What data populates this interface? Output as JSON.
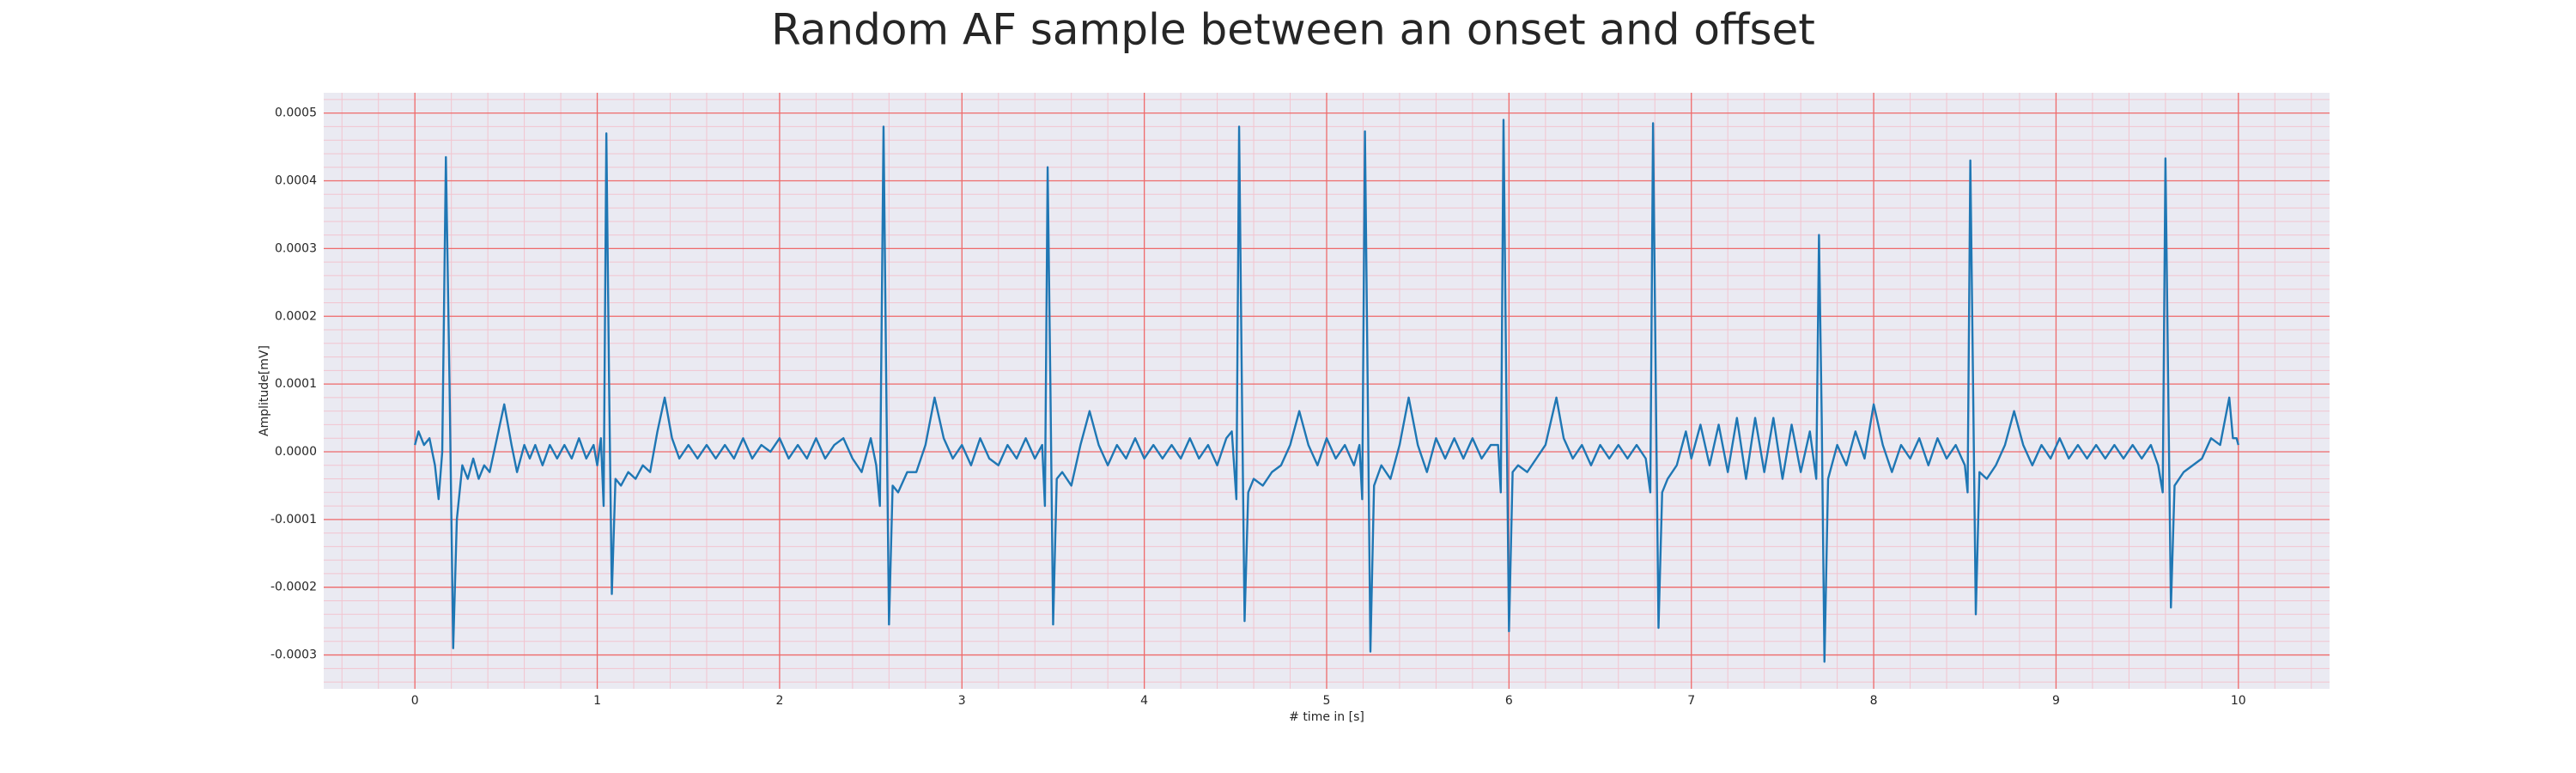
{
  "chart_data": {
    "type": "line",
    "title": "Random AF sample between an onset and offset",
    "xlabel": "# time in [s]",
    "ylabel": "Amplitude[mV]",
    "color": "#1f77b4",
    "grid": true,
    "minor_grid": true,
    "xlim": [
      -0.5,
      10.5
    ],
    "xticks": [
      0,
      1,
      2,
      3,
      4,
      5,
      6,
      7,
      8,
      9,
      10
    ],
    "ylim": [
      -0.00035,
      0.00053
    ],
    "yticks": [
      -0.0003,
      -0.0002,
      -0.0001,
      {
        "value": 0,
        "label": "0.0000"
      },
      0.0001,
      0.0002,
      0.0003,
      0.0004,
      0.0005
    ],
    "x": [
      0,
      0.02,
      0.05,
      0.08,
      0.11,
      0.13,
      0.15,
      0.17,
      0.19,
      0.21,
      0.23,
      0.26,
      0.29,
      0.32,
      0.35,
      0.38,
      0.41,
      0.45,
      0.49,
      0.53,
      0.56,
      0.6,
      0.63,
      0.66,
      0.7,
      0.74,
      0.78,
      0.82,
      0.86,
      0.9,
      0.94,
      0.98,
      1.0,
      1.02,
      1.035,
      1.05,
      1.065,
      1.08,
      1.1,
      1.13,
      1.17,
      1.21,
      1.25,
      1.29,
      1.33,
      1.37,
      1.41,
      1.45,
      1.5,
      1.55,
      1.6,
      1.65,
      1.7,
      1.75,
      1.8,
      1.85,
      1.9,
      1.95,
      2.0,
      2.05,
      2.1,
      2.15,
      2.2,
      2.25,
      2.3,
      2.35,
      2.4,
      2.45,
      2.5,
      2.53,
      2.55,
      2.57,
      2.585,
      2.6,
      2.62,
      2.65,
      2.7,
      2.75,
      2.8,
      2.85,
      2.9,
      2.95,
      3.0,
      3.05,
      3.1,
      3.15,
      3.2,
      3.25,
      3.3,
      3.35,
      3.4,
      3.44,
      3.455,
      3.47,
      3.485,
      3.5,
      3.52,
      3.55,
      3.6,
      3.65,
      3.7,
      3.75,
      3.8,
      3.85,
      3.9,
      3.95,
      4.0,
      4.05,
      4.1,
      4.15,
      4.2,
      4.25,
      4.3,
      4.35,
      4.4,
      4.45,
      4.48,
      4.505,
      4.52,
      4.535,
      4.55,
      4.57,
      4.6,
      4.65,
      4.7,
      4.75,
      4.8,
      4.85,
      4.9,
      4.95,
      5.0,
      5.05,
      5.1,
      5.15,
      5.18,
      5.195,
      5.21,
      5.225,
      5.24,
      5.26,
      5.3,
      5.35,
      5.4,
      5.45,
      5.5,
      5.55,
      5.6,
      5.65,
      5.7,
      5.75,
      5.8,
      5.85,
      5.9,
      5.94,
      5.955,
      5.97,
      5.985,
      6.0,
      6.02,
      6.05,
      6.1,
      6.15,
      6.2,
      6.26,
      6.3,
      6.35,
      6.4,
      6.45,
      6.5,
      6.55,
      6.6,
      6.65,
      6.7,
      6.75,
      6.775,
      6.79,
      6.805,
      6.82,
      6.84,
      6.87,
      6.92,
      6.97,
      7.0,
      7.05,
      7.1,
      7.15,
      7.2,
      7.25,
      7.3,
      7.35,
      7.4,
      7.45,
      7.5,
      7.55,
      7.6,
      7.65,
      7.685,
      7.7,
      7.715,
      7.73,
      7.75,
      7.8,
      7.85,
      7.9,
      7.95,
      8.0,
      8.05,
      8.1,
      8.15,
      8.2,
      8.25,
      8.3,
      8.35,
      8.4,
      8.45,
      8.5,
      8.515,
      8.53,
      8.545,
      8.56,
      8.58,
      8.62,
      8.67,
      8.72,
      8.77,
      8.82,
      8.87,
      8.92,
      8.97,
      9.02,
      9.07,
      9.12,
      9.17,
      9.22,
      9.27,
      9.32,
      9.37,
      9.42,
      9.47,
      9.52,
      9.56,
      9.585,
      9.6,
      9.615,
      9.63,
      9.65,
      9.7,
      9.75,
      9.8,
      9.85,
      9.9,
      9.95,
      9.97,
      9.99,
      10.0
    ],
    "values": [
      1e-05,
      3e-05,
      1e-05,
      2e-05,
      -2e-05,
      -7e-05,
      0,
      0.000435,
      0.0001,
      -0.00029,
      -0.0001,
      -2e-05,
      -4e-05,
      -1e-05,
      -4e-05,
      -2e-05,
      -3e-05,
      2e-05,
      7e-05,
      1e-05,
      -3e-05,
      1e-05,
      -1e-05,
      1e-05,
      -2e-05,
      1e-05,
      -1e-05,
      1e-05,
      -1e-05,
      2e-05,
      -1e-05,
      1e-05,
      -2e-05,
      2e-05,
      -8e-05,
      0.00047,
      0.0001,
      -0.00021,
      -4e-05,
      -5e-05,
      -3e-05,
      -4e-05,
      -2e-05,
      -3e-05,
      3e-05,
      8e-05,
      2e-05,
      -1e-05,
      1e-05,
      -1e-05,
      1e-05,
      -1e-05,
      1e-05,
      -1e-05,
      2e-05,
      -1e-05,
      1e-05,
      0,
      2e-05,
      -1e-05,
      1e-05,
      -1e-05,
      2e-05,
      -1e-05,
      1e-05,
      2e-05,
      -1e-05,
      -3e-05,
      2e-05,
      -2e-05,
      -8e-05,
      0.00048,
      0.0001,
      -0.000255,
      -5e-05,
      -6e-05,
      -3e-05,
      -3e-05,
      1e-05,
      8e-05,
      2e-05,
      -1e-05,
      1e-05,
      -2e-05,
      2e-05,
      -1e-05,
      -2e-05,
      1e-05,
      -1e-05,
      2e-05,
      -1e-05,
      1e-05,
      -8e-05,
      0.00042,
      0.0001,
      -0.000255,
      -4e-05,
      -3e-05,
      -5e-05,
      1e-05,
      6e-05,
      1e-05,
      -2e-05,
      1e-05,
      -1e-05,
      2e-05,
      -1e-05,
      1e-05,
      -1e-05,
      1e-05,
      -1e-05,
      2e-05,
      -1e-05,
      1e-05,
      -2e-05,
      2e-05,
      3e-05,
      -7e-05,
      0.00048,
      0.0001,
      -0.00025,
      -6e-05,
      -4e-05,
      -5e-05,
      -3e-05,
      -2e-05,
      1e-05,
      6e-05,
      1e-05,
      -2e-05,
      2e-05,
      -1e-05,
      1e-05,
      -2e-05,
      1e-05,
      -7e-05,
      0.000473,
      0.0001,
      -0.000295,
      -5e-05,
      -2e-05,
      -4e-05,
      1e-05,
      8e-05,
      1e-05,
      -3e-05,
      2e-05,
      -1e-05,
      2e-05,
      -1e-05,
      2e-05,
      -1e-05,
      1e-05,
      1e-05,
      -6e-05,
      0.00049,
      0.0001,
      -0.000265,
      -3e-05,
      -2e-05,
      -3e-05,
      -1e-05,
      1e-05,
      8e-05,
      2e-05,
      -1e-05,
      1e-05,
      -2e-05,
      1e-05,
      -1e-05,
      1e-05,
      -1e-05,
      1e-05,
      -1e-05,
      -6e-05,
      0.000485,
      0.0001,
      -0.00026,
      -6e-05,
      -4e-05,
      -2e-05,
      3e-05,
      -1e-05,
      4e-05,
      -2e-05,
      4e-05,
      -3e-05,
      5e-05,
      -4e-05,
      5e-05,
      -3e-05,
      5e-05,
      -4e-05,
      4e-05,
      -3e-05,
      3e-05,
      -4e-05,
      0.00032,
      5e-05,
      -0.00031,
      -4e-05,
      1e-05,
      -2e-05,
      3e-05,
      -1e-05,
      7e-05,
      1e-05,
      -3e-05,
      1e-05,
      -1e-05,
      2e-05,
      -2e-05,
      2e-05,
      -1e-05,
      1e-05,
      -2e-05,
      -6e-05,
      0.00043,
      0.0001,
      -0.00024,
      -3e-05,
      -4e-05,
      -2e-05,
      1e-05,
      6e-05,
      1e-05,
      -2e-05,
      1e-05,
      -1e-05,
      2e-05,
      -1e-05,
      1e-05,
      -1e-05,
      1e-05,
      -1e-05,
      1e-05,
      -1e-05,
      1e-05,
      -1e-05,
      1e-05,
      -2e-05,
      -6e-05,
      0.000433,
      0.0001,
      -0.00023,
      -5e-05,
      -3e-05,
      -2e-05,
      -1e-05,
      2e-05,
      1e-05,
      8e-05,
      2e-05,
      2e-05,
      1e-05
    ]
  }
}
